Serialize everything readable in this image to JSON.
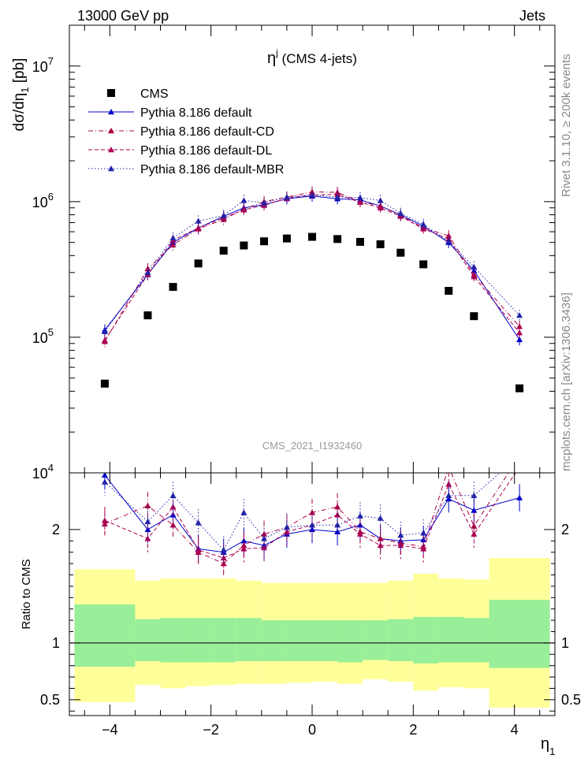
{
  "header": {
    "left": "13000 GeV pp",
    "right": "Jets"
  },
  "side_labels": {
    "rivet": "Rivet 3.1.10, ≥ 200k events",
    "mcplots": "mcplots.cern.ch [arXiv:1306.3436]"
  },
  "chart_data": {
    "type": "scatter",
    "title": "η^j (CMS 4-jets)",
    "watermark": "CMS_2021_I1932460",
    "ylabel": "dσ/dη_1 [pb]",
    "xlabel": "η_1",
    "ratio_ylabel": "Ratio to CMS",
    "yscale": "log",
    "xlim": [
      -4.8,
      4.8
    ],
    "ylim": [
      10000,
      20000000
    ],
    "ratio_ylim": [
      0.36,
      2.5
    ],
    "legend_position": "top-left",
    "x": [
      -4.1,
      -3.25,
      -2.75,
      -2.25,
      -1.75,
      -1.35,
      -0.95,
      -0.5,
      0.0,
      0.5,
      0.95,
      1.35,
      1.75,
      2.2,
      2.7,
      3.2,
      4.1
    ],
    "series": [
      {
        "name": "CMS",
        "style": "data",
        "color": "#000000",
        "values": [
          45500,
          145000,
          235000,
          350000,
          435000,
          475000,
          510000,
          535000,
          550000,
          530000,
          505000,
          485000,
          420000,
          345000,
          220000,
          143000,
          42000
        ]
      },
      {
        "name": "Pythia 8.186 default",
        "style": "solid",
        "color": "#0000cc",
        "values": [
          113000,
          290000,
          500000,
          640000,
          780000,
          900000,
          950000,
          1050000,
          1100000,
          1050000,
          1030000,
          930000,
          800000,
          660000,
          500000,
          310000,
          96000
        ],
        "ratio": [
          2.48,
          2.0,
          2.13,
          1.83,
          1.8,
          1.9,
          1.86,
          1.96,
          2.0,
          1.98,
          2.04,
          1.92,
          1.9,
          1.91,
          2.27,
          2.17,
          2.28
        ]
      },
      {
        "name": "Pythia 8.186 default-CD",
        "style": "dashdot",
        "color": "#aa0044",
        "values": [
          93000,
          320000,
          480000,
          630000,
          740000,
          880000,
          1000000,
          1080000,
          1180000,
          1170000,
          1000000,
          930000,
          790000,
          640000,
          560000,
          290000,
          120000
        ],
        "ratio": [
          2.05,
          2.21,
          2.04,
          1.8,
          1.7,
          1.86,
          1.96,
          2.02,
          2.15,
          2.2,
          1.98,
          1.92,
          1.88,
          1.85,
          2.55,
          2.03,
          2.85
        ]
      },
      {
        "name": "Pythia 8.186 default-DL",
        "style": "dashed",
        "color": "#aa0055",
        "values": [
          95000,
          290000,
          520000,
          640000,
          760000,
          870000,
          940000,
          1060000,
          1120000,
          1130000,
          990000,
          900000,
          780000,
          630000,
          530000,
          280000,
          108000
        ],
        "ratio": [
          2.08,
          1.92,
          2.2,
          1.82,
          1.75,
          1.83,
          1.84,
          1.98,
          2.04,
          2.13,
          1.96,
          1.86,
          1.86,
          1.83,
          2.4,
          1.96,
          2.55
        ]
      },
      {
        "name": "Pythia 8.186 default-MBR",
        "style": "dotted",
        "color": "#2222aa",
        "values": [
          110000,
          300000,
          540000,
          720000,
          790000,
          1020000,
          980000,
          1080000,
          1120000,
          1080000,
          1070000,
          1020000,
          820000,
          680000,
          510000,
          330000,
          145000
        ],
        "ratio": [
          2.42,
          2.07,
          2.3,
          2.06,
          1.82,
          2.15,
          1.92,
          2.02,
          2.04,
          2.04,
          2.12,
          2.1,
          1.95,
          1.97,
          2.3,
          2.3,
          3.4
        ]
      }
    ],
    "uncertainty_bands": {
      "edges": [
        -4.7,
        -3.5,
        -3.0,
        -2.5,
        -2.0,
        -1.5,
        -1.0,
        -0.5,
        0.0,
        0.5,
        1.0,
        1.5,
        2.0,
        2.5,
        3.0,
        3.5,
        4.7
      ],
      "inner_low": [
        0.79,
        0.84,
        0.83,
        0.83,
        0.83,
        0.84,
        0.84,
        0.84,
        0.84,
        0.83,
        0.85,
        0.84,
        0.82,
        0.83,
        0.83,
        0.78
      ],
      "inner_high": [
        1.34,
        1.21,
        1.22,
        1.22,
        1.22,
        1.22,
        1.2,
        1.2,
        1.2,
        1.2,
        1.2,
        1.21,
        1.23,
        1.23,
        1.22,
        1.38
      ],
      "outer_low": [
        0.48,
        0.63,
        0.6,
        0.62,
        0.63,
        0.64,
        0.64,
        0.65,
        0.66,
        0.64,
        0.68,
        0.66,
        0.58,
        0.61,
        0.6,
        0.43
      ],
      "outer_high": [
        1.65,
        1.55,
        1.57,
        1.57,
        1.57,
        1.55,
        1.53,
        1.53,
        1.53,
        1.53,
        1.53,
        1.55,
        1.61,
        1.57,
        1.56,
        1.75
      ],
      "inner_color": "#99ee99",
      "outer_color": "#ffff99"
    },
    "main_yticks": [
      {
        "value": 10000,
        "label": "10",
        "exp": "4"
      },
      {
        "value": 100000,
        "label": "10",
        "exp": "5"
      },
      {
        "value": 1000000,
        "label": "10",
        "exp": "6"
      },
      {
        "value": 10000000,
        "label": "10",
        "exp": "7"
      }
    ],
    "ratio_yticks": [
      {
        "value": 0.5,
        "label": "0.5"
      },
      {
        "value": 1,
        "label": "1"
      },
      {
        "value": 2,
        "label": "2"
      }
    ],
    "xticks": [
      {
        "value": -4,
        "label": "−4"
      },
      {
        "value": -2,
        "label": "−2"
      },
      {
        "value": 0,
        "label": "0"
      },
      {
        "value": 2,
        "label": "2"
      },
      {
        "value": 4,
        "label": "4"
      }
    ]
  }
}
